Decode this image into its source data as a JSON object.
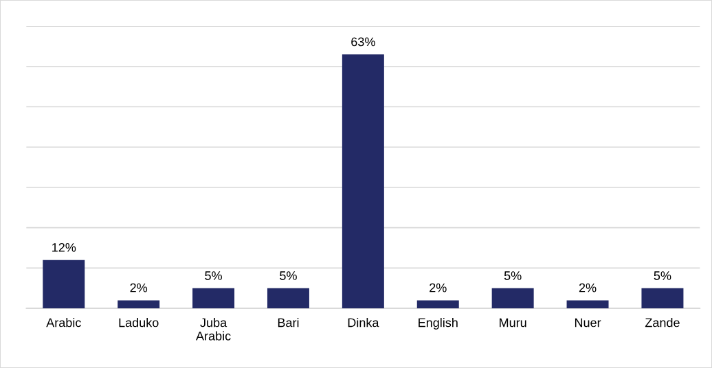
{
  "chart_data": {
    "type": "bar",
    "categories": [
      "Arabic",
      "Laduko",
      "Juba Arabic",
      "Bari",
      "Dinka",
      "English",
      "Muru",
      "Nuer",
      "Zande"
    ],
    "values": [
      12,
      2,
      5,
      5,
      63,
      2,
      5,
      2,
      5
    ],
    "value_labels": [
      "12%",
      "2%",
      "5%",
      "5%",
      "63%",
      "2%",
      "5%",
      "2%",
      "5%"
    ],
    "color": "#232a66",
    "ylim": [
      0,
      70
    ],
    "yticks": [
      {
        "value": 0,
        "label": null
      },
      {
        "value": 10,
        "label": null
      },
      {
        "value": 20,
        "label": null
      },
      {
        "value": 30,
        "label": null
      },
      {
        "value": 40,
        "label": null
      },
      {
        "value": 50,
        "label": null
      },
      {
        "value": 60,
        "label": null
      },
      {
        "value": 70,
        "label": null
      }
    ],
    "grid": "y",
    "tick_labels": "x"
  }
}
